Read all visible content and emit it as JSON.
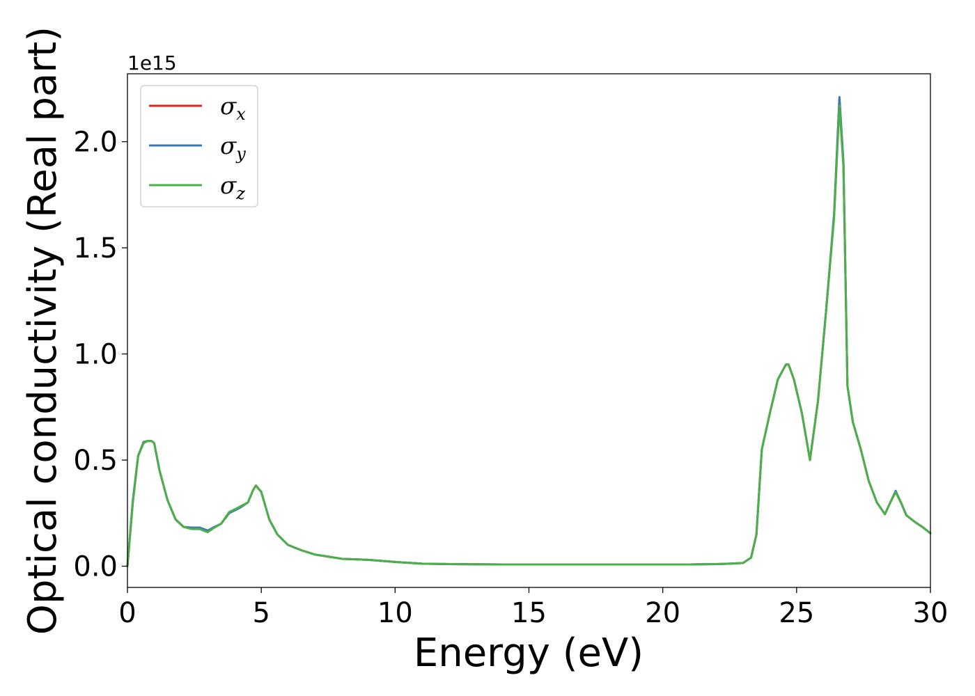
{
  "chart_data": {
    "type": "line",
    "xlabel": "Energy (eV)",
    "ylabel": "Optical conductivity (Real part)",
    "y_offset_label": "1e15",
    "xlim": [
      0,
      30
    ],
    "ylim": [
      -0.1,
      2.32
    ],
    "xticks": [
      "0",
      "5",
      "10",
      "15",
      "20",
      "25",
      "30"
    ],
    "yticks": [
      "0.0",
      "0.5",
      "1.0",
      "1.5",
      "2.0"
    ],
    "grid": false,
    "legend_position": "top-left",
    "series": [
      {
        "name": "σx",
        "name_base": "σ",
        "name_sub": "x",
        "color": "#d62728",
        "x": [
          0,
          0.2,
          0.4,
          0.6,
          0.75,
          0.9,
          1.0,
          1.2,
          1.5,
          1.8,
          2.1,
          2.4,
          2.7,
          3.0,
          3.2,
          3.5,
          3.8,
          4.2,
          4.5,
          4.7,
          4.8,
          5.0,
          5.3,
          5.6,
          6.0,
          6.5,
          7.0,
          7.5,
          8.0,
          9.0,
          10.0,
          11.0,
          12.0,
          14.0,
          16.0,
          18.0,
          20.0,
          21.0,
          22.0,
          22.5,
          23.0,
          23.3,
          23.5,
          23.7,
          24.0,
          24.3,
          24.6,
          24.7,
          24.9,
          25.2,
          25.5,
          25.8,
          26.1,
          26.4,
          26.6,
          26.75,
          26.9,
          27.1,
          27.4,
          27.7,
          28.0,
          28.3,
          28.5,
          28.7,
          28.9,
          29.1,
          29.4,
          29.7,
          30.0
        ],
        "y": [
          0.0,
          0.3,
          0.52,
          0.58,
          0.59,
          0.59,
          0.58,
          0.45,
          0.31,
          0.22,
          0.185,
          0.18,
          0.18,
          0.165,
          0.18,
          0.2,
          0.25,
          0.28,
          0.3,
          0.36,
          0.38,
          0.35,
          0.22,
          0.15,
          0.1,
          0.075,
          0.055,
          0.045,
          0.035,
          0.03,
          0.02,
          0.012,
          0.01,
          0.008,
          0.008,
          0.008,
          0.008,
          0.008,
          0.01,
          0.012,
          0.015,
          0.04,
          0.15,
          0.55,
          0.72,
          0.88,
          0.95,
          0.95,
          0.88,
          0.72,
          0.5,
          0.78,
          1.2,
          1.65,
          2.2,
          1.9,
          0.85,
          0.68,
          0.55,
          0.4,
          0.3,
          0.245,
          0.3,
          0.35,
          0.3,
          0.24,
          0.21,
          0.185,
          0.155
        ]
      },
      {
        "name": "σy",
        "name_base": "σ",
        "name_sub": "y",
        "color": "#3a78b5",
        "x": [
          0,
          0.2,
          0.4,
          0.6,
          0.75,
          0.9,
          1.0,
          1.2,
          1.5,
          1.8,
          2.1,
          2.4,
          2.7,
          3.0,
          3.2,
          3.5,
          3.8,
          4.2,
          4.5,
          4.7,
          4.8,
          5.0,
          5.3,
          5.6,
          6.0,
          6.5,
          7.0,
          7.5,
          8.0,
          9.0,
          10.0,
          11.0,
          12.0,
          14.0,
          16.0,
          18.0,
          20.0,
          21.0,
          22.0,
          22.5,
          23.0,
          23.3,
          23.5,
          23.7,
          24.0,
          24.3,
          24.6,
          24.7,
          24.9,
          25.2,
          25.5,
          25.8,
          26.1,
          26.4,
          26.6,
          26.75,
          26.9,
          27.1,
          27.4,
          27.7,
          28.0,
          28.3,
          28.5,
          28.7,
          28.9,
          29.1,
          29.4,
          29.7,
          30.0
        ],
        "y": [
          0.0,
          0.31,
          0.52,
          0.585,
          0.59,
          0.59,
          0.58,
          0.45,
          0.31,
          0.22,
          0.185,
          0.182,
          0.182,
          0.168,
          0.182,
          0.2,
          0.25,
          0.275,
          0.3,
          0.36,
          0.38,
          0.35,
          0.22,
          0.15,
          0.1,
          0.075,
          0.055,
          0.045,
          0.035,
          0.03,
          0.02,
          0.012,
          0.01,
          0.008,
          0.008,
          0.008,
          0.008,
          0.008,
          0.01,
          0.012,
          0.015,
          0.04,
          0.15,
          0.55,
          0.72,
          0.88,
          0.95,
          0.95,
          0.88,
          0.72,
          0.5,
          0.78,
          1.2,
          1.66,
          2.21,
          1.9,
          0.85,
          0.68,
          0.55,
          0.4,
          0.3,
          0.245,
          0.3,
          0.355,
          0.3,
          0.24,
          0.21,
          0.185,
          0.155
        ]
      },
      {
        "name": "σz",
        "name_base": "σ",
        "name_sub": "z",
        "color": "#4daf4a",
        "x": [
          0,
          0.2,
          0.4,
          0.6,
          0.75,
          0.9,
          1.0,
          1.2,
          1.5,
          1.8,
          2.1,
          2.4,
          2.7,
          3.0,
          3.2,
          3.5,
          3.8,
          4.2,
          4.5,
          4.7,
          4.8,
          5.0,
          5.3,
          5.6,
          6.0,
          6.5,
          7.0,
          7.5,
          8.0,
          9.0,
          10.0,
          11.0,
          12.0,
          14.0,
          16.0,
          18.0,
          20.0,
          21.0,
          22.0,
          22.5,
          23.0,
          23.3,
          23.5,
          23.7,
          24.0,
          24.3,
          24.6,
          24.7,
          24.9,
          25.2,
          25.5,
          25.8,
          26.1,
          26.4,
          26.6,
          26.75,
          26.9,
          27.1,
          27.4,
          27.7,
          28.0,
          28.3,
          28.5,
          28.7,
          28.9,
          29.1,
          29.4,
          29.7,
          30.0
        ],
        "y": [
          0.0,
          0.3,
          0.52,
          0.58,
          0.59,
          0.59,
          0.58,
          0.45,
          0.31,
          0.22,
          0.185,
          0.175,
          0.175,
          0.16,
          0.178,
          0.2,
          0.255,
          0.28,
          0.3,
          0.36,
          0.38,
          0.35,
          0.22,
          0.15,
          0.1,
          0.075,
          0.055,
          0.045,
          0.035,
          0.03,
          0.02,
          0.012,
          0.01,
          0.008,
          0.008,
          0.008,
          0.008,
          0.008,
          0.01,
          0.012,
          0.015,
          0.04,
          0.15,
          0.55,
          0.72,
          0.88,
          0.95,
          0.95,
          0.88,
          0.72,
          0.5,
          0.78,
          1.2,
          1.64,
          2.17,
          1.88,
          0.85,
          0.68,
          0.55,
          0.4,
          0.3,
          0.245,
          0.3,
          0.35,
          0.3,
          0.24,
          0.21,
          0.185,
          0.155
        ]
      }
    ]
  }
}
